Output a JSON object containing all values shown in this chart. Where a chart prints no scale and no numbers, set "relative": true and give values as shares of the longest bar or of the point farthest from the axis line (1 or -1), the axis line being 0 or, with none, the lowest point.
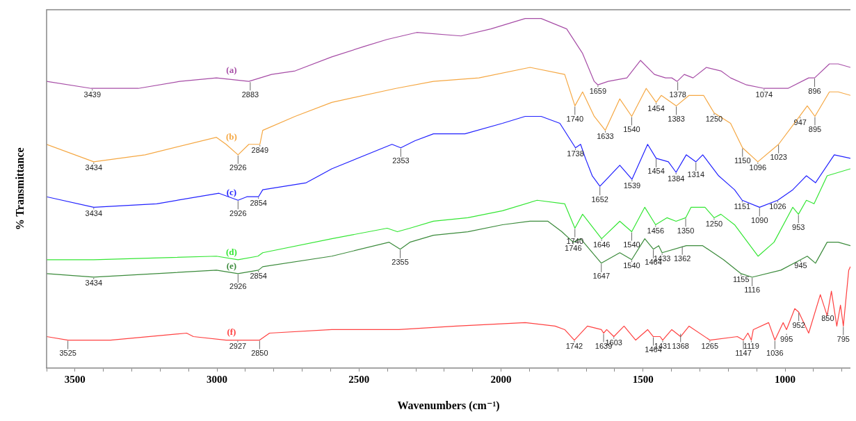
{
  "chart_data": {
    "type": "line",
    "relative": true,
    "xlabel": "Wavenumbers (cm⁻¹)",
    "ylabel": "% Transmittance",
    "xlim": [
      3600,
      770
    ],
    "xticks": [
      {
        "value": 3600,
        "label": null
      },
      3500,
      {
        "value": 3400,
        "label": null
      },
      {
        "value": 3300,
        "label": null
      },
      {
        "value": 3200,
        "label": null
      },
      {
        "value": 3100,
        "label": null
      },
      3000,
      {
        "value": 2900,
        "label": null
      },
      {
        "value": 2800,
        "label": null
      },
      {
        "value": 2700,
        "label": null
      },
      {
        "value": 2600,
        "label": null
      },
      2500,
      {
        "value": 2400,
        "label": null
      },
      {
        "value": 2300,
        "label": null
      },
      {
        "value": 2200,
        "label": null
      },
      {
        "value": 2100,
        "label": null
      },
      2000,
      {
        "value": 1900,
        "label": null
      },
      {
        "value": 1800,
        "label": null
      },
      {
        "value": 1700,
        "label": null
      },
      {
        "value": 1600,
        "label": null
      },
      1500,
      {
        "value": 1400,
        "label": null
      },
      {
        "value": 1300,
        "label": null
      },
      {
        "value": 1200,
        "label": null
      },
      {
        "value": 1100,
        "label": null
      },
      1000,
      {
        "value": 900,
        "label": null
      },
      {
        "value": 800,
        "label": null
      }
    ],
    "grid": false,
    "legend": false,
    "marker": "none",
    "line_style": "solid",
    "series": [
      {
        "name": "(a)",
        "color": "#a64ca6",
        "x": [
          3600,
          3443,
          3277,
          3131,
          3002,
          2888,
          2808,
          2725,
          2596,
          2482,
          2401,
          2297,
          2141,
          2036,
          1915,
          1859,
          1769,
          1713,
          1672,
          1659,
          1623,
          1557,
          1509,
          1460,
          1421,
          1399,
          1380,
          1355,
          1324,
          1277,
          1226,
          1192,
          1136,
          1074,
          990,
          917,
          896,
          844,
          813,
          770
        ],
        "values": [
          0.82,
          0.8,
          0.8,
          0.82,
          0.83,
          0.82,
          0.84,
          0.85,
          0.89,
          0.92,
          0.94,
          0.96,
          0.95,
          0.97,
          1.0,
          1.0,
          0.97,
          0.9,
          0.82,
          0.81,
          0.82,
          0.83,
          0.88,
          0.84,
          0.83,
          0.83,
          0.82,
          0.84,
          0.83,
          0.86,
          0.85,
          0.83,
          0.81,
          0.8,
          0.8,
          0.83,
          0.83,
          0.87,
          0.87,
          0.86
        ]
      },
      {
        "name": "(b)",
        "color": "#f5a742",
        "x": [
          3600,
          3434,
          3253,
          3002,
          2968,
          2926,
          2888,
          2849,
          2839,
          2725,
          2596,
          2370,
          2238,
          2078,
          1898,
          1776,
          1740,
          1713,
          1672,
          1633,
          1582,
          1540,
          1489,
          1454,
          1436,
          1383,
          1338,
          1287,
          1250,
          1192,
          1150,
          1096,
          1023,
          949,
          922,
          895,
          844,
          813,
          770
        ],
        "values": [
          0.64,
          0.59,
          0.61,
          0.66,
          0.64,
          0.61,
          0.64,
          0.64,
          0.68,
          0.72,
          0.76,
          0.8,
          0.82,
          0.83,
          0.86,
          0.84,
          0.75,
          0.79,
          0.72,
          0.68,
          0.77,
          0.72,
          0.8,
          0.76,
          0.78,
          0.75,
          0.78,
          0.78,
          0.73,
          0.7,
          0.63,
          0.59,
          0.64,
          0.72,
          0.75,
          0.72,
          0.79,
          0.79,
          0.78
        ]
      },
      {
        "name": "(c)",
        "color": "#2020ff",
        "x": [
          3600,
          3434,
          3212,
          2993,
          2926,
          2895,
          2854,
          2839,
          2686,
          2596,
          2384,
          2353,
          2304,
          2238,
          2127,
          1995,
          1915,
          1859,
          1793,
          1738,
          1720,
          1703,
          1679,
          1652,
          1582,
          1539,
          1484,
          1454,
          1411,
          1384,
          1348,
          1314,
          1290,
          1234,
          1178,
          1151,
          1090,
          1026,
          973,
          925,
          893,
          827,
          770
        ],
        "values": [
          0.49,
          0.46,
          0.47,
          0.5,
          0.48,
          0.49,
          0.49,
          0.51,
          0.53,
          0.57,
          0.64,
          0.63,
          0.65,
          0.67,
          0.67,
          0.7,
          0.72,
          0.72,
          0.7,
          0.63,
          0.64,
          0.6,
          0.55,
          0.52,
          0.58,
          0.54,
          0.64,
          0.6,
          0.59,
          0.56,
          0.61,
          0.59,
          0.61,
          0.55,
          0.51,
          0.48,
          0.46,
          0.48,
          0.51,
          0.55,
          0.53,
          0.61,
          0.6
        ]
      },
      {
        "name": "(d)",
        "color": "#33e633",
        "x": [
          3600,
          3434,
          3002,
          2926,
          2856,
          2839,
          2596,
          2401,
          2365,
          2321,
          2238,
          2117,
          1995,
          1873,
          1776,
          1740,
          1713,
          1646,
          1582,
          1540,
          1494,
          1456,
          1416,
          1384,
          1350,
          1331,
          1282,
          1250,
          1226,
          1178,
          1095,
          1039,
          973,
          953,
          925,
          898,
          852,
          770
        ],
        "values": [
          0.31,
          0.31,
          0.32,
          0.31,
          0.32,
          0.33,
          0.37,
          0.4,
          0.39,
          0.4,
          0.42,
          0.43,
          0.45,
          0.48,
          0.47,
          0.4,
          0.44,
          0.37,
          0.42,
          0.39,
          0.46,
          0.41,
          0.43,
          0.42,
          0.43,
          0.46,
          0.46,
          0.43,
          0.44,
          0.41,
          0.32,
          0.36,
          0.46,
          0.44,
          0.48,
          0.47,
          0.55,
          0.57
        ]
      },
      {
        "name": "(e)",
        "color": "#3a8a3a",
        "x": [
          3600,
          3434,
          3002,
          2926,
          2854,
          2839,
          2596,
          2394,
          2355,
          2321,
          2238,
          2117,
          1995,
          1898,
          1835,
          1786,
          1746,
          1720,
          1647,
          1582,
          1540,
          1494,
          1464,
          1445,
          1433,
          1348,
          1290,
          1217,
          1155,
          1116,
          1015,
          945,
          922,
          893,
          852,
          813,
          770
        ],
        "values": [
          0.27,
          0.26,
          0.28,
          0.27,
          0.28,
          0.29,
          0.32,
          0.36,
          0.34,
          0.36,
          0.38,
          0.39,
          0.41,
          0.42,
          0.42,
          0.39,
          0.36,
          0.37,
          0.3,
          0.33,
          0.31,
          0.37,
          0.34,
          0.35,
          0.33,
          0.35,
          0.35,
          0.31,
          0.27,
          0.26,
          0.28,
          0.31,
          0.32,
          0.3,
          0.36,
          0.36,
          0.35
        ]
      },
      {
        "name": "(f)",
        "color": "#ff4040",
        "x": [
          3600,
          3525,
          3375,
          3107,
          3083,
          2968,
          2927,
          2850,
          2815,
          2596,
          2360,
          2158,
          1915,
          1810,
          1776,
          1742,
          1696,
          1647,
          1639,
          1628,
          1603,
          1567,
          1526,
          1484,
          1464,
          1440,
          1431,
          1399,
          1368,
          1338,
          1265,
          1168,
          1147,
          1131,
          1119,
          1112,
          1058,
          1036,
          1007,
          995,
          966,
          952,
          917,
          876,
          852,
          837,
          818,
          805,
          795,
          776,
          770
        ],
        "values": [
          0.09,
          0.08,
          0.08,
          0.1,
          0.09,
          0.08,
          0.08,
          0.08,
          0.1,
          0.11,
          0.11,
          0.12,
          0.13,
          0.12,
          0.11,
          0.08,
          0.12,
          0.11,
          0.1,
          0.11,
          0.09,
          0.12,
          0.08,
          0.11,
          0.09,
          0.09,
          0.08,
          0.11,
          0.09,
          0.12,
          0.08,
          0.09,
          0.08,
          0.1,
          0.08,
          0.11,
          0.13,
          0.08,
          0.13,
          0.11,
          0.17,
          0.16,
          0.1,
          0.21,
          0.15,
          0.22,
          0.12,
          0.18,
          0.12,
          0.28,
          0.29
        ]
      }
    ],
    "annotations": [
      {
        "text": "3439",
        "x": 3439,
        "y": 0.8
      },
      {
        "text": "2883",
        "x": 2883,
        "y": 0.82
      },
      {
        "text": "1659",
        "x": 1659,
        "y": 0.81
      },
      {
        "text": "1378",
        "x": 1378,
        "y": 0.82
      },
      {
        "text": "1074",
        "x": 1074,
        "y": 0.8
      },
      {
        "text": "896",
        "x": 896,
        "y": 0.83
      },
      {
        "text": "3434",
        "x": 3434,
        "y": 0.59
      },
      {
        "text": "2926",
        "x": 2926,
        "y": 0.61
      },
      {
        "text": "2849",
        "x": 2849,
        "y": 0.64
      },
      {
        "text": "1740",
        "x": 1740,
        "y": 0.75
      },
      {
        "text": "1633",
        "x": 1633,
        "y": 0.68
      },
      {
        "text": "1540",
        "x": 1540,
        "y": 0.72
      },
      {
        "text": "1454",
        "x": 1454,
        "y": 0.76
      },
      {
        "text": "1383",
        "x": 1383,
        "y": 0.75
      },
      {
        "text": "1250",
        "x": 1250,
        "y": 0.73
      },
      {
        "text": "1150",
        "x": 1150,
        "y": 0.63
      },
      {
        "text": "1096",
        "x": 1096,
        "y": 0.59
      },
      {
        "text": "1023",
        "x": 1023,
        "y": 0.64
      },
      {
        "text": "947",
        "x": 947,
        "y": 0.72
      },
      {
        "text": "895",
        "x": 895,
        "y": 0.72
      },
      {
        "text": "3434",
        "x": 3434,
        "y": 0.46
      },
      {
        "text": "2926",
        "x": 2926,
        "y": 0.48
      },
      {
        "text": "2854",
        "x": 2854,
        "y": 0.49
      },
      {
        "text": "2353",
        "x": 2353,
        "y": 0.63
      },
      {
        "text": "1738",
        "x": 1738,
        "y": 0.63
      },
      {
        "text": "1652",
        "x": 1652,
        "y": 0.52
      },
      {
        "text": "1539",
        "x": 1539,
        "y": 0.54
      },
      {
        "text": "1454",
        "x": 1454,
        "y": 0.6
      },
      {
        "text": "1384",
        "x": 1384,
        "y": 0.56
      },
      {
        "text": "1314",
        "x": 1314,
        "y": 0.59
      },
      {
        "text": "1151",
        "x": 1151,
        "y": 0.48
      },
      {
        "text": "1090",
        "x": 1090,
        "y": 0.46
      },
      {
        "text": "1026",
        "x": 1026,
        "y": 0.48
      },
      {
        "text": "1740",
        "x": 1740,
        "y": 0.4
      },
      {
        "text": "1646",
        "x": 1646,
        "y": 0.37
      },
      {
        "text": "1540",
        "x": 1540,
        "y": 0.39
      },
      {
        "text": "1456",
        "x": 1456,
        "y": 0.41
      },
      {
        "text": "1350",
        "x": 1350,
        "y": 0.43
      },
      {
        "text": "1250",
        "x": 1250,
        "y": 0.43
      },
      {
        "text": "953",
        "x": 953,
        "y": 0.44
      },
      {
        "text": "3434",
        "x": 3434,
        "y": 0.26
      },
      {
        "text": "2926",
        "x": 2926,
        "y": 0.27
      },
      {
        "text": "2854",
        "x": 2854,
        "y": 0.28
      },
      {
        "text": "2355",
        "x": 2355,
        "y": 0.34
      },
      {
        "text": "1746",
        "x": 1746,
        "y": 0.36
      },
      {
        "text": "1647",
        "x": 1647,
        "y": 0.3
      },
      {
        "text": "1540",
        "x": 1540,
        "y": 0.31
      },
      {
        "text": "1464",
        "x": 1464,
        "y": 0.34
      },
      {
        "text": "1433",
        "x": 1433,
        "y": 0.33
      },
      {
        "text": "1362",
        "x": 1362,
        "y": 0.35
      },
      {
        "text": "1155",
        "x": 1155,
        "y": 0.27
      },
      {
        "text": "1116",
        "x": 1116,
        "y": 0.26
      },
      {
        "text": "945",
        "x": 945,
        "y": 0.31
      },
      {
        "text": "3525",
        "x": 3525,
        "y": 0.08
      },
      {
        "text": "2927",
        "x": 2927,
        "y": 0.08
      },
      {
        "text": "2850",
        "x": 2850,
        "y": 0.08
      },
      {
        "text": "1742",
        "x": 1742,
        "y": 0.08
      },
      {
        "text": "1639",
        "x": 1639,
        "y": 0.1
      },
      {
        "text": "1603",
        "x": 1603,
        "y": 0.09
      },
      {
        "text": "1464",
        "x": 1464,
        "y": 0.09
      },
      {
        "text": "1431",
        "x": 1431,
        "y": 0.08
      },
      {
        "text": "1368",
        "x": 1368,
        "y": 0.1
      },
      {
        "text": "1265",
        "x": 1265,
        "y": 0.08
      },
      {
        "text": "1147",
        "x": 1147,
        "y": 0.08
      },
      {
        "text": "1119",
        "x": 1119,
        "y": 0.08
      },
      {
        "text": "1036",
        "x": 1036,
        "y": 0.08
      },
      {
        "text": "995",
        "x": 995,
        "y": 0.1
      },
      {
        "text": "952",
        "x": 952,
        "y": 0.16
      },
      {
        "text": "850",
        "x": 850,
        "y": 0.16
      },
      {
        "text": "795",
        "x": 795,
        "y": 0.12
      }
    ]
  }
}
